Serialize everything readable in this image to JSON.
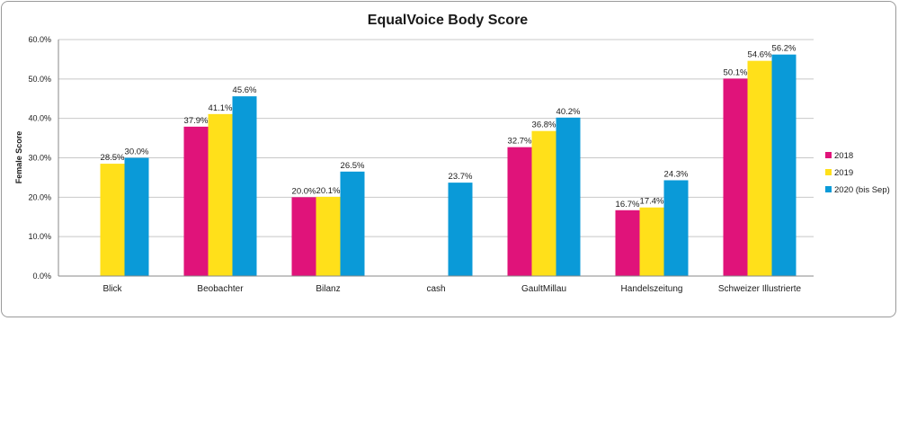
{
  "chart_data": {
    "type": "bar",
    "title": "EqualVoice Body Score",
    "xlabel": "",
    "ylabel": "Female Score",
    "ylim": [
      0,
      60
    ],
    "yticks": [
      "0.0%",
      "10.0%",
      "20.0%",
      "30.0%",
      "40.0%",
      "50.0%",
      "60.0%"
    ],
    "categories": [
      "Blick",
      "Beobachter",
      "Bilanz",
      "cash",
      "GaultMillau",
      "Handelszeitung",
      "Schweizer Illustrierte"
    ],
    "series": [
      {
        "name": "2018",
        "color": "#e0137a",
        "values": [
          null,
          37.9,
          20.0,
          null,
          32.7,
          16.7,
          50.1
        ],
        "labels": [
          "",
          "37.9%",
          "20.0%",
          "",
          "32.7%",
          "16.7%",
          "50.1%"
        ]
      },
      {
        "name": "2019",
        "color": "#ffe01a",
        "values": [
          28.5,
          41.1,
          20.1,
          null,
          36.8,
          17.4,
          54.6
        ],
        "labels": [
          "28.5%",
          "41.1%",
          "20.1%",
          "",
          "36.8%",
          "17.4%",
          "54.6%"
        ]
      },
      {
        "name": "2020 (bis Sep)",
        "color": "#0a9ad8",
        "values": [
          30.0,
          45.6,
          26.5,
          23.7,
          40.2,
          24.3,
          56.2
        ],
        "labels": [
          "30.0%",
          "45.6%",
          "26.5%",
          "23.7%",
          "40.2%",
          "24.3%",
          "56.2%"
        ]
      }
    ],
    "grid": true,
    "legend_position": "right"
  }
}
